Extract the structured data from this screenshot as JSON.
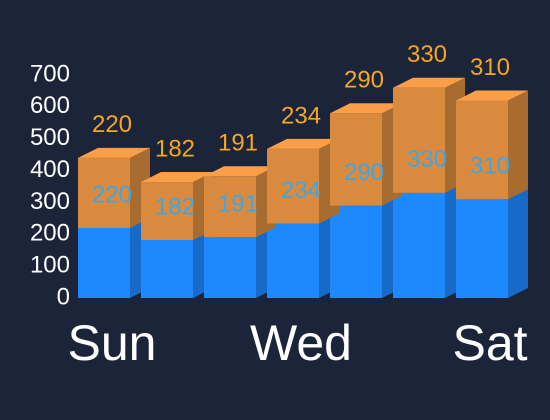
{
  "chart_data": {
    "type": "bar3d",
    "stacked": true,
    "categories": [
      "Sun",
      null,
      null,
      "Wed",
      null,
      null,
      "Sat"
    ],
    "series": [
      {
        "color": "#1e88ff",
        "label_color": "#3fa6e6",
        "values": [
          220,
          182,
          191,
          234,
          290,
          330,
          310
        ]
      },
      {
        "color": "#d98a3e",
        "label_color": "#f5a623",
        "values": [
          220,
          182,
          191,
          234,
          290,
          330,
          310
        ]
      }
    ],
    "ylim": [
      0,
      700
    ],
    "yticks": [
      0,
      100,
      200,
      300,
      400,
      500,
      600,
      700
    ]
  }
}
